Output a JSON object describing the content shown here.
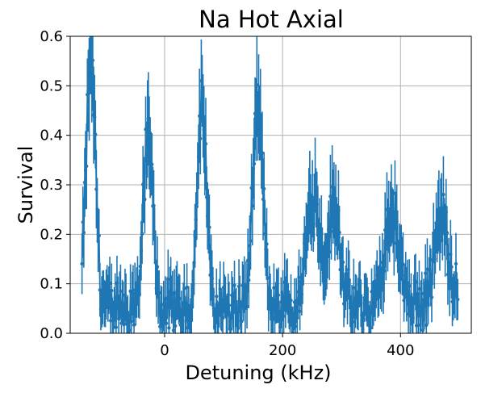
{
  "chart_data": {
    "type": "line",
    "title": "Na Hot Axial",
    "xlabel": "Detuning (kHz)",
    "ylabel": "Survival",
    "xlim": [
      -160,
      520
    ],
    "ylim": [
      0.0,
      0.6
    ],
    "xticks": [
      0,
      200,
      400
    ],
    "xtick_labels": [
      "0",
      "200",
      "400"
    ],
    "yticks": [
      0.0,
      0.1,
      0.2,
      0.3,
      0.4,
      0.5,
      0.6
    ],
    "ytick_labels": [
      "0.0",
      "0.1",
      "0.2",
      "0.3",
      "0.4",
      "0.5",
      "0.6"
    ],
    "grid": true,
    "color": "#1f77b4",
    "markers": true,
    "error_bars": true,
    "peaks": [
      {
        "center": -125,
        "height": 0.5,
        "width": 8
      },
      {
        "center": -28,
        "height": 0.34,
        "width": 8
      },
      {
        "center": 63,
        "height": 0.41,
        "width": 8
      },
      {
        "center": 158,
        "height": 0.39,
        "width": 9
      },
      {
        "center": 252,
        "height": 0.24,
        "width": 11
      },
      {
        "center": 288,
        "height": 0.21,
        "width": 10
      },
      {
        "center": 385,
        "height": 0.2,
        "width": 12
      },
      {
        "center": 470,
        "height": 0.18,
        "width": 13
      }
    ],
    "x_range": [
      -140,
      497
    ],
    "n_points": 420,
    "baseline": 0.05
  }
}
